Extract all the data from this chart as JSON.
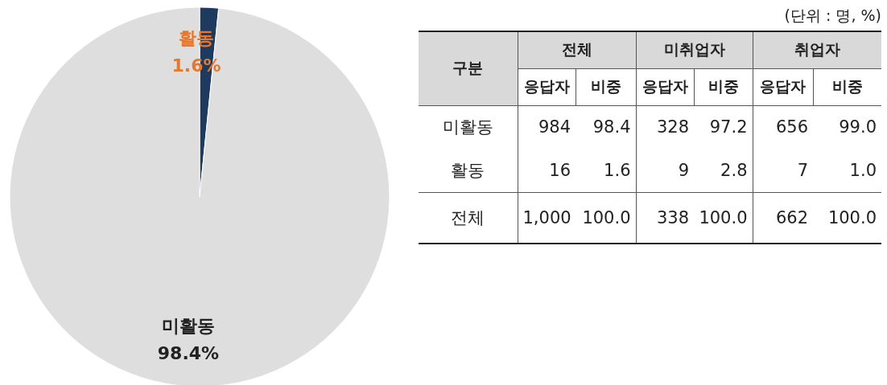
{
  "chart_data": [
    {
      "type": "pie",
      "categories": [
        "활동",
        "미활동"
      ],
      "values": [
        1.6,
        98.4
      ],
      "colors": [
        "#1f3a5f",
        "#dedede"
      ],
      "value_labels": [
        "1.6%",
        "98.4%"
      ]
    },
    {
      "type": "other",
      "annotations": [
        "(단위 : 명, %)",
        "구분",
        "전체",
        "미취업자",
        "취업자",
        "응답자",
        "비중",
        "응답자",
        "비중",
        "응답자",
        "비중",
        "미활동",
        "984",
        "98.4",
        "328",
        "97.2",
        "656",
        "99.0",
        "활동",
        "16",
        "1.6",
        "9",
        "2.8",
        "7",
        "1.0",
        "전체",
        "1,000",
        "100.0",
        "338",
        "100.0",
        "662",
        "100.0"
      ]
    }
  ]
}
